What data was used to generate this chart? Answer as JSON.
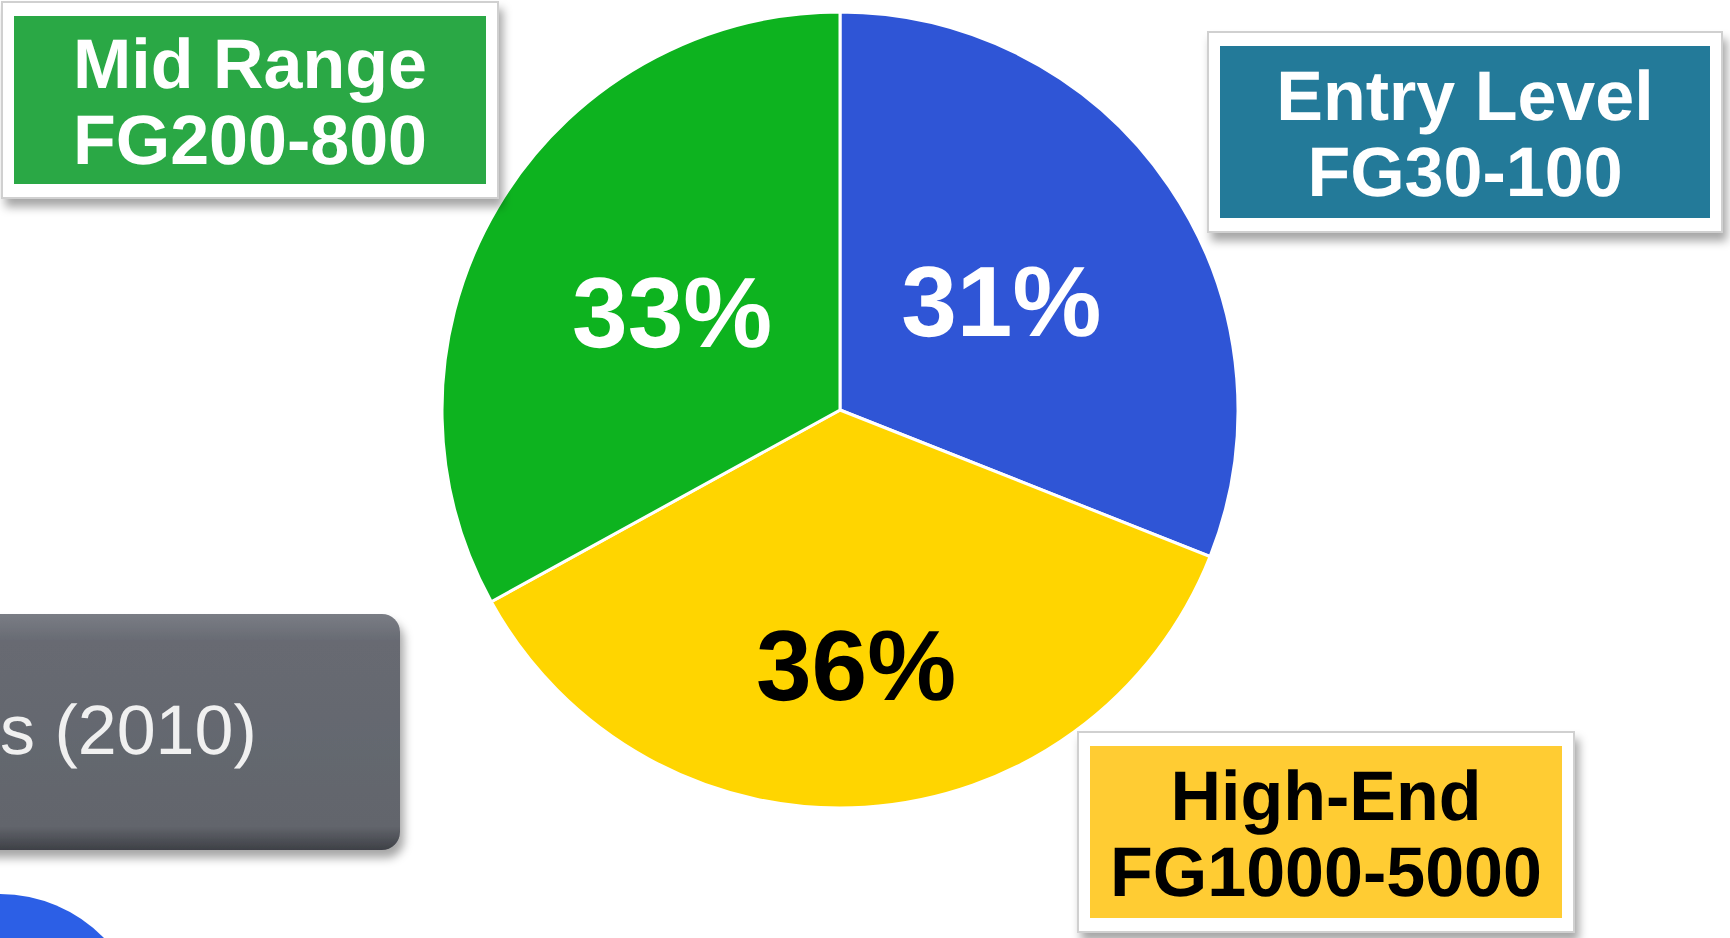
{
  "chart_data": {
    "type": "pie",
    "categories": [
      "Entry Level\nFG30-100",
      "High-End\nFG1000-5000",
      "Mid Range\nFG200-800"
    ],
    "values": [
      31,
      36,
      33
    ],
    "colors": [
      "#2f55d6",
      "#ffd500",
      "#0db31f"
    ],
    "value_labels": [
      "31%",
      "36%",
      "33%"
    ],
    "annotations": [
      "s (2010)"
    ]
  }
}
